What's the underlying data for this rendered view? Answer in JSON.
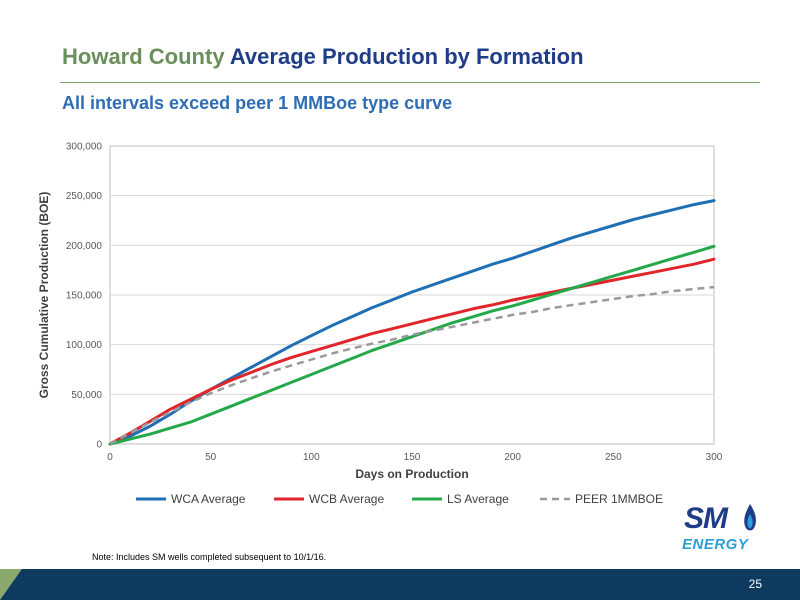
{
  "header": {
    "title_part1": "Howard County",
    "title_part2": "Average Production by Formation",
    "subtitle": "All intervals exceed peer 1 MMBoe type curve"
  },
  "chart_data": {
    "type": "line",
    "xlabel": "Days on Production",
    "ylabel": "Gross Cumulative Production (BOE)",
    "xlim": [
      0,
      300
    ],
    "ylim": [
      0,
      300000
    ],
    "xticks": [
      0,
      50,
      100,
      150,
      200,
      250,
      300
    ],
    "yticks": [
      0,
      50000,
      100000,
      150000,
      200000,
      250000,
      300000
    ],
    "ytick_labels": [
      "0",
      "50,000",
      "100,000",
      "150,000",
      "200,000",
      "250,000",
      "300,000"
    ],
    "grid": "horizontal",
    "legend_position": "bottom",
    "x": [
      0,
      10,
      20,
      30,
      40,
      50,
      60,
      70,
      80,
      90,
      100,
      110,
      120,
      130,
      140,
      150,
      160,
      170,
      180,
      190,
      200,
      210,
      220,
      230,
      240,
      250,
      260,
      270,
      280,
      290,
      300
    ],
    "series": [
      {
        "name": "WCA Average",
        "color": "#1f6fb5",
        "dash": false,
        "values": [
          0,
          8000,
          18000,
          30000,
          43000,
          55000,
          66000,
          77000,
          88000,
          99000,
          109000,
          119000,
          128000,
          137000,
          145000,
          153000,
          160000,
          167000,
          174000,
          181000,
          187000,
          194000,
          201000,
          208000,
          214000,
          220000,
          226000,
          231000,
          236000,
          241000,
          245000
        ]
      },
      {
        "name": "WCB Average",
        "color": "#e0262b",
        "dash": false,
        "values": [
          0,
          11000,
          23000,
          35000,
          45000,
          55000,
          64000,
          72000,
          80000,
          87000,
          93000,
          99000,
          105000,
          111000,
          116000,
          121000,
          126000,
          131000,
          136000,
          140000,
          145000,
          149000,
          153000,
          157000,
          161000,
          165000,
          169000,
          173000,
          177000,
          181000,
          186000
        ]
      },
      {
        "name": "LS Average",
        "color": "#24a84a",
        "dash": false,
        "values": [
          0,
          5000,
          10000,
          16000,
          22000,
          30000,
          38000,
          46000,
          54000,
          62000,
          70000,
          78000,
          86000,
          94000,
          101000,
          108000,
          115000,
          122000,
          128000,
          134000,
          139000,
          145000,
          151000,
          157000,
          163000,
          169000,
          175000,
          181000,
          187000,
          193000,
          199000
        ]
      },
      {
        "name": "PEER 1MMBOE",
        "color": "#9a9a9a",
        "dash": true,
        "values": [
          0,
          11000,
          22000,
          32000,
          42000,
          51000,
          59000,
          66000,
          73000,
          79000,
          85000,
          91000,
          96000,
          101000,
          105000,
          110000,
          114000,
          118000,
          122000,
          126000,
          130000,
          133000,
          137000,
          140000,
          143000,
          146000,
          149000,
          151000,
          154000,
          156000,
          158000
        ]
      }
    ]
  },
  "logo": {
    "line1": "SM",
    "line2": "ENERGY"
  },
  "footnote": "Note: Includes SM wells completed subsequent to 10/1/16.",
  "page_number": "25"
}
